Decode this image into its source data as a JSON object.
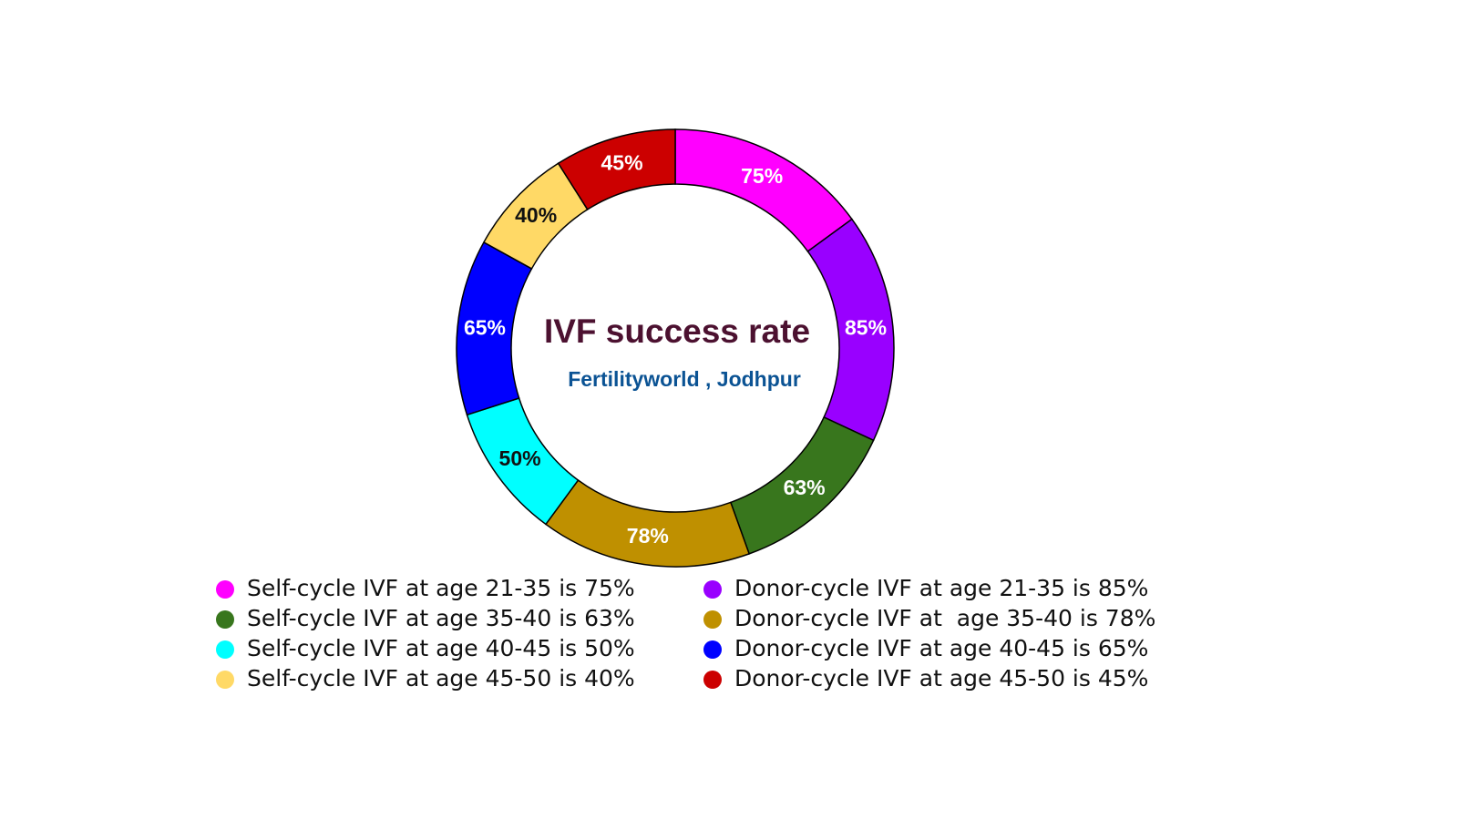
{
  "chart_data": {
    "type": "donut",
    "title": "IVF success rate",
    "subtitle": "Fertilityworld , Jodhpur",
    "categories": [
      "Self-cycle IVF at age 21-35 is 75%",
      "Donor-cycle IVF at age 21-35 is 85%",
      "Self-cycle IVF at age 35-40 is 63%",
      "Donor-cycle IVF at  age 35-40 is 78%",
      "Self-cycle IVF at age 40-45 is 50%",
      "Donor-cycle IVF at age 40-45 is 65%",
      "Self-cycle IVF at age 45-50 is 40%",
      "Donor-cycle IVF at age 45-50 is 45%"
    ],
    "values": [
      75,
      85,
      63,
      78,
      50,
      65,
      40,
      45
    ],
    "value_labels": [
      "75%",
      "85%",
      "63%",
      "78%",
      "50%",
      "65%",
      "40%",
      "45%"
    ],
    "colors": [
      "#ff00ff",
      "#9900ff",
      "#38761d",
      "#bf9000",
      "#00ffff",
      "#0000ff",
      "#ffd966",
      "#cc0000"
    ]
  }
}
